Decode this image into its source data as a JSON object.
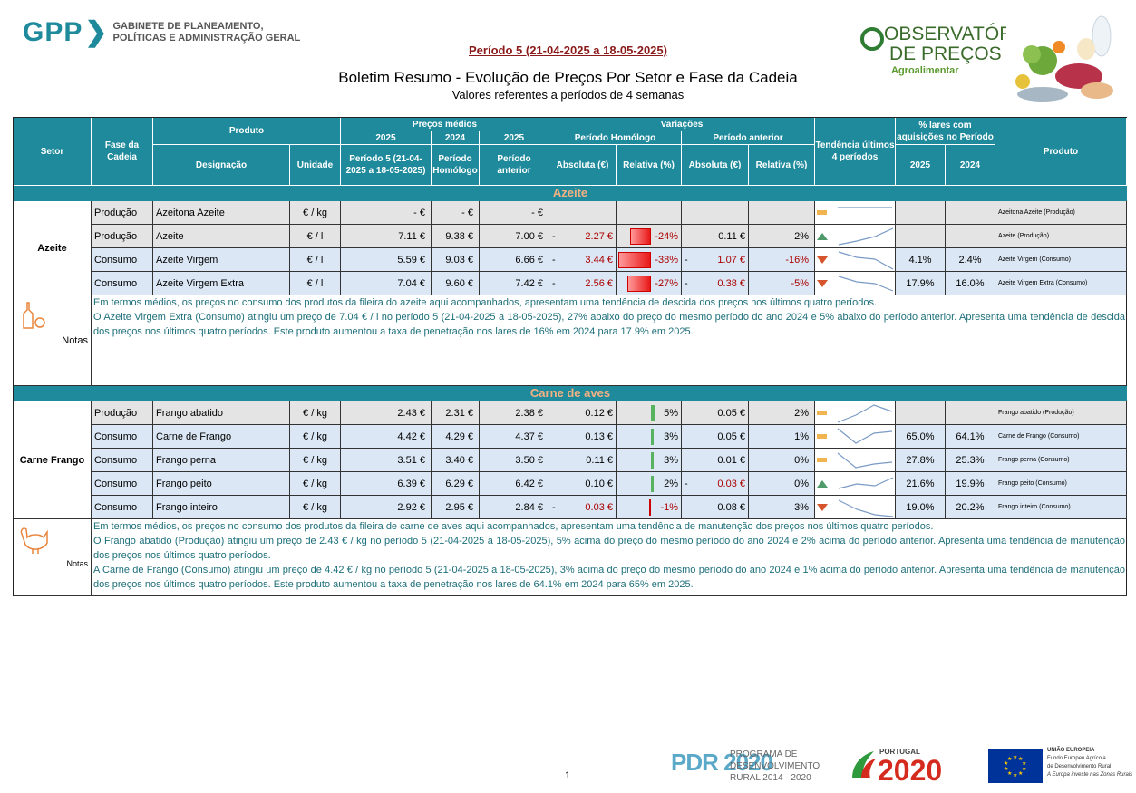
{
  "header": {
    "gpp_mark": "GPP",
    "gpp_line1": "GABINETE DE PLANEAMENTO,",
    "gpp_line2": "POLÍTICAS E ADMINISTRAÇÃO GERAL",
    "period": "Período 5 (21-04-2025 a 18-05-2025)",
    "title": "Boletim Resumo - Evolução de Preços Por Setor e Fase da Cadeia",
    "subtitle": "Valores referentes a períodos de 4 semanas",
    "obs_line1": "OBSERVATÓRIO",
    "obs_line2": "DE PREÇOS",
    "obs_line3": "Agroalimentar"
  },
  "table_header": {
    "setor": "Setor",
    "fase": "Fase da Cadeia",
    "produto": "Produto",
    "designacao": "Designação",
    "unidade": "Unidade",
    "precos_medios": "Preços médios",
    "y2025": "2025",
    "y2024": "2024",
    "y2025b": "2025",
    "periodo5": "Período 5 (21-04-2025 a 18-05-2025)",
    "periodo_homologo": "Período Homólogo",
    "periodo_anterior": "Período anterior",
    "variacoes": "Variações",
    "var_homologo": "Período Homólogo",
    "var_anterior": "Período anterior",
    "absoluta": "Absoluta (€)",
    "relativa": "Relativa (%)",
    "absoluta2": "Absoluta (€)",
    "relativa2": "Relativa (%)",
    "tendencia": "Tendência últimos 4 períodos",
    "lares": "% lares com aquisições no Período",
    "lares_2025": "2025",
    "lares_2024": "2024",
    "produto_right": "Produto"
  },
  "sections": [
    {
      "name": "Azeite",
      "setor": "Azeite",
      "rows": [
        {
          "fase": "Produção",
          "designacao": "Azeitona Azeite",
          "unidade": "€ / kg",
          "p2025": "-   €",
          "p2024": "-   €",
          "pant": "-   €",
          "abs_h_sign": "",
          "abs_h": "",
          "rel_h": "",
          "abs_a_sign": "",
          "abs_a": "",
          "rel_a": "",
          "trend": "flat",
          "lares25": "",
          "lares24": "",
          "produto": "Azeitona Azeite (Produção)",
          "bg": "grey",
          "bar": 0,
          "bar_color": "none"
        },
        {
          "fase": "Produção",
          "designacao": "Azeite",
          "unidade": "€ / l",
          "p2025": "7.11 €",
          "p2024": "9.38 €",
          "pant": "7.00 €",
          "abs_h_sign": "-",
          "abs_h": "2.27 €",
          "rel_h": "-24%",
          "abs_a_sign": "",
          "abs_a": "0.11 €",
          "rel_a": "2%",
          "trend": "up",
          "lares25": "",
          "lares24": "",
          "produto": "Azeite (Produção)",
          "bg": "grey",
          "bar": 0.24,
          "bar_color": "red"
        },
        {
          "fase": "Consumo",
          "designacao": "Azeite Virgem",
          "unidade": "€ / l",
          "p2025": "5.59 €",
          "p2024": "9.03 €",
          "pant": "6.66 €",
          "abs_h_sign": "-",
          "abs_h": "3.44 €",
          "rel_h": "-38%",
          "abs_a_sign": "-",
          "abs_a": "1.07 €",
          "rel_a": "-16%",
          "trend": "down",
          "lares25": "4.1%",
          "lares24": "2.4%",
          "produto": "Azeite Virgem (Consumo)",
          "bg": "blue",
          "bar": 0.38,
          "bar_color": "red"
        },
        {
          "fase": "Consumo",
          "designacao": "Azeite Virgem Extra",
          "unidade": "€ / l",
          "p2025": "7.04 €",
          "p2024": "9.60 €",
          "pant": "7.42 €",
          "abs_h_sign": "-",
          "abs_h": "2.56 €",
          "rel_h": "-27%",
          "abs_a_sign": "-",
          "abs_a": "0.38 €",
          "rel_a": "-5%",
          "trend": "down",
          "lares25": "17.9%",
          "lares24": "16.0%",
          "produto": "Azeite Virgem Extra (Consumo)",
          "bg": "blue",
          "bar": 0.27,
          "bar_color": "red"
        }
      ],
      "notes_label": "Notas",
      "notes": [
        "Em termos médios, os preços no consumo dos produtos da fileira do azeite aqui acompanhados, apresentam uma tendência de descida dos preços nos últimos quatro períodos.",
        "O Azeite Virgem Extra (Consumo) atingiu um preço de 7.04 € / l no período 5 (21-04-2025 a 18-05-2025), 27% abaixo do preço do mesmo período do ano 2024 e 5% abaixo do período anterior. Apresenta uma tendência de descida dos preços nos últimos quatro períodos. Este produto aumentou a taxa de penetração nos lares de 16% em 2024 para 17.9% em 2025."
      ]
    },
    {
      "name": "Carne de aves",
      "setor": "Carne Frango",
      "rows": [
        {
          "fase": "Produção",
          "designacao": "Frango abatido",
          "unidade": "€ / kg",
          "p2025": "2.43 €",
          "p2024": "2.31 €",
          "pant": "2.38 €",
          "abs_h_sign": "",
          "abs_h": "0.12 €",
          "rel_h": "5%",
          "abs_a_sign": "",
          "abs_a": "0.05 €",
          "rel_a": "2%",
          "trend": "flat",
          "lares25": "",
          "lares24": "",
          "produto": "Frango abatido (Produção)",
          "bg": "grey",
          "bar": 0.05,
          "bar_color": "green"
        },
        {
          "fase": "Consumo",
          "designacao": "Carne de Frango",
          "unidade": "€ / kg",
          "p2025": "4.42 €",
          "p2024": "4.29 €",
          "pant": "4.37 €",
          "abs_h_sign": "",
          "abs_h": "0.13 €",
          "rel_h": "3%",
          "abs_a_sign": "",
          "abs_a": "0.05 €",
          "rel_a": "1%",
          "trend": "flat",
          "lares25": "65.0%",
          "lares24": "64.1%",
          "produto": "Carne de Frango (Consumo)",
          "bg": "blue",
          "bar": 0.03,
          "bar_color": "green"
        },
        {
          "fase": "Consumo",
          "designacao": "Frango perna",
          "unidade": "€ / kg",
          "p2025": "3.51 €",
          "p2024": "3.40 €",
          "pant": "3.50 €",
          "abs_h_sign": "",
          "abs_h": "0.11 €",
          "rel_h": "3%",
          "abs_a_sign": "",
          "abs_a": "0.01 €",
          "rel_a": "0%",
          "trend": "flat",
          "lares25": "27.8%",
          "lares24": "25.3%",
          "produto": "Frango perna (Consumo)",
          "bg": "blue",
          "bar": 0.03,
          "bar_color": "green"
        },
        {
          "fase": "Consumo",
          "designacao": "Frango peito",
          "unidade": "€ / kg",
          "p2025": "6.39 €",
          "p2024": "6.29 €",
          "pant": "6.42 €",
          "abs_h_sign": "",
          "abs_h": "0.10 €",
          "rel_h": "2%",
          "abs_a_sign": "-",
          "abs_a": "0.03 €",
          "rel_a": "0%",
          "trend": "up",
          "lares25": "21.6%",
          "lares24": "19.9%",
          "produto": "Frango peito (Consumo)",
          "bg": "blue",
          "bar": 0.02,
          "bar_color": "green"
        },
        {
          "fase": "Consumo",
          "designacao": "Frango inteiro",
          "unidade": "€ / kg",
          "p2025": "2.92 €",
          "p2024": "2.95 €",
          "pant": "2.84 €",
          "abs_h_sign": "-",
          "abs_h": "0.03 €",
          "rel_h": "-1%",
          "abs_a_sign": "",
          "abs_a": "0.08 €",
          "rel_a": "3%",
          "trend": "down",
          "lares25": "19.0%",
          "lares24": "20.2%",
          "produto": "Frango inteiro (Consumo)",
          "bg": "blue",
          "bar": 0.01,
          "bar_color": "red"
        }
      ],
      "notes_label": "Notas",
      "notes": [
        "Em termos médios, os preços no consumo dos produtos da fileira de carne de aves aqui acompanhados, apresentam uma tendência de  manutenção dos preços nos últimos quatro períodos.",
        "O Frango abatido (Produção) atingiu um preço de 2.43 € / kg no período 5 (21-04-2025 a 18-05-2025), 5% acima do preço do mesmo período do ano 2024 e 2% acima do período anterior. Apresenta uma tendência de manutenção dos preços nos últimos quatro períodos.",
        "A Carne de Frango (Consumo) atingiu um preço de 4.42 € / kg no período 5 (21-04-2025 a 18-05-2025), 3% acima do preço do mesmo período do ano 2024 e 1% acima do período anterior. Apresenta uma tendência de manutenção dos preços nos últimos quatro períodos. Este produto aumentou a taxa de penetração nos lares de 64.1% em 2024 para 65% em 2025."
      ]
    }
  ],
  "footer": {
    "page_number": "1",
    "pdr": "PDR 2020",
    "pdr_l1": "PROGRAMA DE",
    "pdr_l2": "DESENVOLVIMENTO",
    "pdr_l3": "RURAL 2014 · 2020",
    "pt_word": "PORTUGAL",
    "pt_2020": "2020",
    "eu_l1": "UNIÃO EUROPEIA",
    "eu_l2": "Fundo Europeu Agrícola",
    "eu_l3": "de Desenvolvimento Rural",
    "eu_l4": "A Europa investe nas Zonas Rurais"
  },
  "colors": {
    "header_bg": "#1f8a9b",
    "section_text": "#f4b183",
    "notes_text": "#1d6f7a",
    "negative": "#aa0000",
    "bar_red": "#e81818",
    "bar_green": "#57b35f"
  }
}
